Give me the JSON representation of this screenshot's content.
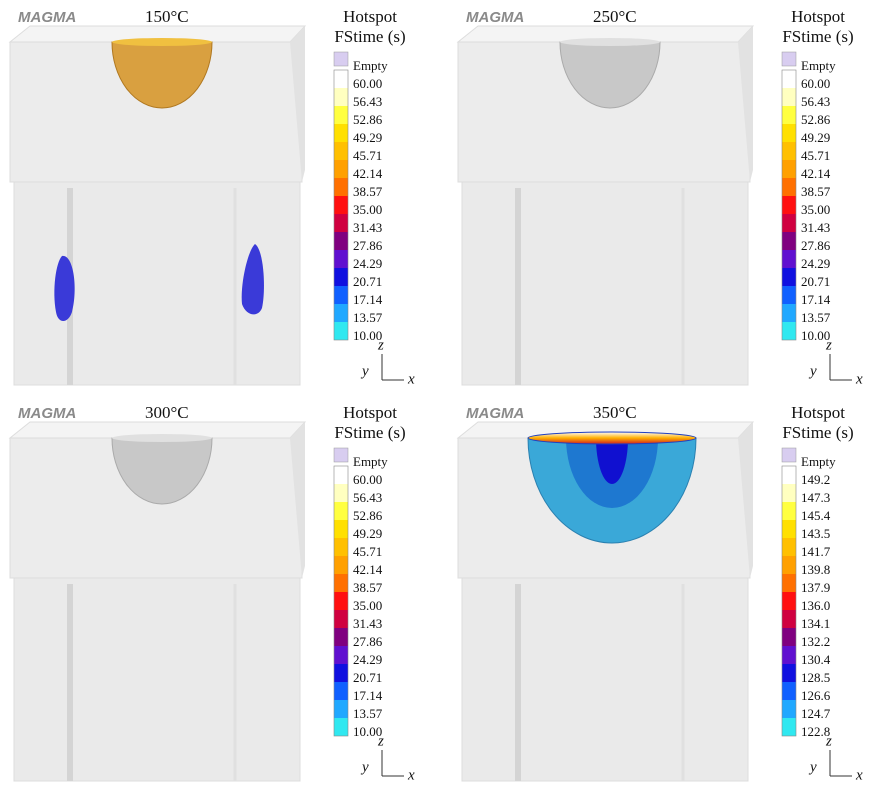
{
  "panels": [
    {
      "brand": "MAGMA",
      "title": "150°C",
      "legend_title": [
        "Hotspot",
        "FStime (s)"
      ],
      "legend_labels": [
        "Empty",
        "60.00",
        "56.43",
        "52.86",
        "49.29",
        "45.71",
        "42.14",
        "38.57",
        "35.00",
        "31.43",
        "27.86",
        "24.29",
        "20.71",
        "17.14",
        "13.57",
        "10.00"
      ],
      "axes": {
        "z": "z",
        "y": "y",
        "x": "x"
      }
    },
    {
      "brand": "MAGMA",
      "title": "250°C",
      "legend_title": [
        "Hotspot",
        "FStime (s)"
      ],
      "legend_labels": [
        "Empty",
        "60.00",
        "56.43",
        "52.86",
        "49.29",
        "45.71",
        "42.14",
        "38.57",
        "35.00",
        "31.43",
        "27.86",
        "24.29",
        "20.71",
        "17.14",
        "13.57",
        "10.00"
      ],
      "axes": {
        "z": "z",
        "y": "y",
        "x": "x"
      }
    },
    {
      "brand": "MAGMA",
      "title": "300°C",
      "legend_title": [
        "Hotspot",
        "FStime (s)"
      ],
      "legend_labels": [
        "Empty",
        "60.00",
        "56.43",
        "52.86",
        "49.29",
        "45.71",
        "42.14",
        "38.57",
        "35.00",
        "31.43",
        "27.86",
        "24.29",
        "20.71",
        "17.14",
        "13.57",
        "10.00"
      ],
      "axes": {
        "z": "z",
        "y": "y",
        "x": "x"
      }
    },
    {
      "brand": "MAGMA",
      "title": "350°C",
      "legend_title": [
        "Hotspot",
        "FStime (s)"
      ],
      "legend_labels": [
        "Empty",
        "149.2",
        "147.3",
        "145.4",
        "143.5",
        "141.7",
        "139.8",
        "137.9",
        "136.0",
        "134.1",
        "132.2",
        "130.4",
        "128.5",
        "126.6",
        "124.7",
        "122.8"
      ],
      "axes": {
        "z": "z",
        "y": "y",
        "x": "x"
      }
    }
  ]
}
